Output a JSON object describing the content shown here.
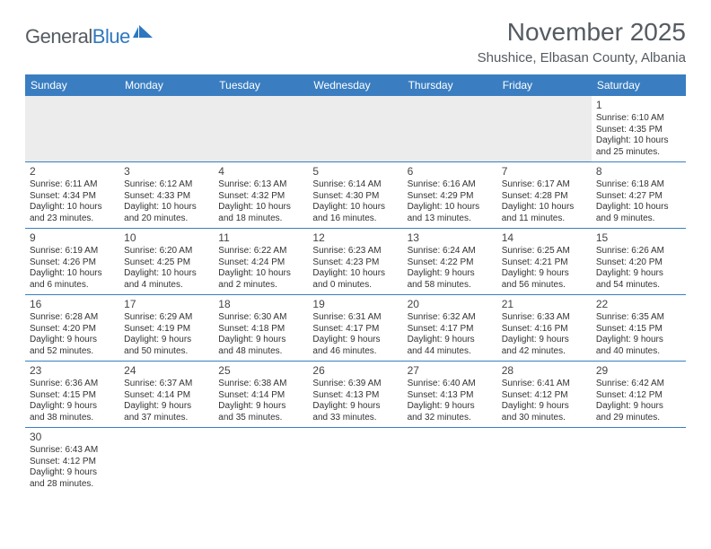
{
  "logo": {
    "part1": "General",
    "part2": "Blue"
  },
  "title": "November 2025",
  "location": "Shushice, Elbasan County, Albania",
  "colors": {
    "header_bg": "#3a7ec1",
    "header_text": "#ffffff",
    "border": "#3a7ec1",
    "blank_bg": "#ececec",
    "text": "#333333",
    "title_text": "#555b61",
    "logo_gray": "#555b61",
    "logo_blue": "#2f78c0"
  },
  "dayNames": [
    "Sunday",
    "Monday",
    "Tuesday",
    "Wednesday",
    "Thursday",
    "Friday",
    "Saturday"
  ],
  "weeks": [
    [
      {
        "blank": true
      },
      {
        "blank": true
      },
      {
        "blank": true
      },
      {
        "blank": true
      },
      {
        "blank": true
      },
      {
        "blank": true
      },
      {
        "day": "1",
        "sunrise": "Sunrise: 6:10 AM",
        "sunset": "Sunset: 4:35 PM",
        "daylight1": "Daylight: 10 hours",
        "daylight2": "and 25 minutes."
      }
    ],
    [
      {
        "day": "2",
        "sunrise": "Sunrise: 6:11 AM",
        "sunset": "Sunset: 4:34 PM",
        "daylight1": "Daylight: 10 hours",
        "daylight2": "and 23 minutes."
      },
      {
        "day": "3",
        "sunrise": "Sunrise: 6:12 AM",
        "sunset": "Sunset: 4:33 PM",
        "daylight1": "Daylight: 10 hours",
        "daylight2": "and 20 minutes."
      },
      {
        "day": "4",
        "sunrise": "Sunrise: 6:13 AM",
        "sunset": "Sunset: 4:32 PM",
        "daylight1": "Daylight: 10 hours",
        "daylight2": "and 18 minutes."
      },
      {
        "day": "5",
        "sunrise": "Sunrise: 6:14 AM",
        "sunset": "Sunset: 4:30 PM",
        "daylight1": "Daylight: 10 hours",
        "daylight2": "and 16 minutes."
      },
      {
        "day": "6",
        "sunrise": "Sunrise: 6:16 AM",
        "sunset": "Sunset: 4:29 PM",
        "daylight1": "Daylight: 10 hours",
        "daylight2": "and 13 minutes."
      },
      {
        "day": "7",
        "sunrise": "Sunrise: 6:17 AM",
        "sunset": "Sunset: 4:28 PM",
        "daylight1": "Daylight: 10 hours",
        "daylight2": "and 11 minutes."
      },
      {
        "day": "8",
        "sunrise": "Sunrise: 6:18 AM",
        "sunset": "Sunset: 4:27 PM",
        "daylight1": "Daylight: 10 hours",
        "daylight2": "and 9 minutes."
      }
    ],
    [
      {
        "day": "9",
        "sunrise": "Sunrise: 6:19 AM",
        "sunset": "Sunset: 4:26 PM",
        "daylight1": "Daylight: 10 hours",
        "daylight2": "and 6 minutes."
      },
      {
        "day": "10",
        "sunrise": "Sunrise: 6:20 AM",
        "sunset": "Sunset: 4:25 PM",
        "daylight1": "Daylight: 10 hours",
        "daylight2": "and 4 minutes."
      },
      {
        "day": "11",
        "sunrise": "Sunrise: 6:22 AM",
        "sunset": "Sunset: 4:24 PM",
        "daylight1": "Daylight: 10 hours",
        "daylight2": "and 2 minutes."
      },
      {
        "day": "12",
        "sunrise": "Sunrise: 6:23 AM",
        "sunset": "Sunset: 4:23 PM",
        "daylight1": "Daylight: 10 hours",
        "daylight2": "and 0 minutes."
      },
      {
        "day": "13",
        "sunrise": "Sunrise: 6:24 AM",
        "sunset": "Sunset: 4:22 PM",
        "daylight1": "Daylight: 9 hours",
        "daylight2": "and 58 minutes."
      },
      {
        "day": "14",
        "sunrise": "Sunrise: 6:25 AM",
        "sunset": "Sunset: 4:21 PM",
        "daylight1": "Daylight: 9 hours",
        "daylight2": "and 56 minutes."
      },
      {
        "day": "15",
        "sunrise": "Sunrise: 6:26 AM",
        "sunset": "Sunset: 4:20 PM",
        "daylight1": "Daylight: 9 hours",
        "daylight2": "and 54 minutes."
      }
    ],
    [
      {
        "day": "16",
        "sunrise": "Sunrise: 6:28 AM",
        "sunset": "Sunset: 4:20 PM",
        "daylight1": "Daylight: 9 hours",
        "daylight2": "and 52 minutes."
      },
      {
        "day": "17",
        "sunrise": "Sunrise: 6:29 AM",
        "sunset": "Sunset: 4:19 PM",
        "daylight1": "Daylight: 9 hours",
        "daylight2": "and 50 minutes."
      },
      {
        "day": "18",
        "sunrise": "Sunrise: 6:30 AM",
        "sunset": "Sunset: 4:18 PM",
        "daylight1": "Daylight: 9 hours",
        "daylight2": "and 48 minutes."
      },
      {
        "day": "19",
        "sunrise": "Sunrise: 6:31 AM",
        "sunset": "Sunset: 4:17 PM",
        "daylight1": "Daylight: 9 hours",
        "daylight2": "and 46 minutes."
      },
      {
        "day": "20",
        "sunrise": "Sunrise: 6:32 AM",
        "sunset": "Sunset: 4:17 PM",
        "daylight1": "Daylight: 9 hours",
        "daylight2": "and 44 minutes."
      },
      {
        "day": "21",
        "sunrise": "Sunrise: 6:33 AM",
        "sunset": "Sunset: 4:16 PM",
        "daylight1": "Daylight: 9 hours",
        "daylight2": "and 42 minutes."
      },
      {
        "day": "22",
        "sunrise": "Sunrise: 6:35 AM",
        "sunset": "Sunset: 4:15 PM",
        "daylight1": "Daylight: 9 hours",
        "daylight2": "and 40 minutes."
      }
    ],
    [
      {
        "day": "23",
        "sunrise": "Sunrise: 6:36 AM",
        "sunset": "Sunset: 4:15 PM",
        "daylight1": "Daylight: 9 hours",
        "daylight2": "and 38 minutes."
      },
      {
        "day": "24",
        "sunrise": "Sunrise: 6:37 AM",
        "sunset": "Sunset: 4:14 PM",
        "daylight1": "Daylight: 9 hours",
        "daylight2": "and 37 minutes."
      },
      {
        "day": "25",
        "sunrise": "Sunrise: 6:38 AM",
        "sunset": "Sunset: 4:14 PM",
        "daylight1": "Daylight: 9 hours",
        "daylight2": "and 35 minutes."
      },
      {
        "day": "26",
        "sunrise": "Sunrise: 6:39 AM",
        "sunset": "Sunset: 4:13 PM",
        "daylight1": "Daylight: 9 hours",
        "daylight2": "and 33 minutes."
      },
      {
        "day": "27",
        "sunrise": "Sunrise: 6:40 AM",
        "sunset": "Sunset: 4:13 PM",
        "daylight1": "Daylight: 9 hours",
        "daylight2": "and 32 minutes."
      },
      {
        "day": "28",
        "sunrise": "Sunrise: 6:41 AM",
        "sunset": "Sunset: 4:12 PM",
        "daylight1": "Daylight: 9 hours",
        "daylight2": "and 30 minutes."
      },
      {
        "day": "29",
        "sunrise": "Sunrise: 6:42 AM",
        "sunset": "Sunset: 4:12 PM",
        "daylight1": "Daylight: 9 hours",
        "daylight2": "and 29 minutes."
      }
    ],
    [
      {
        "day": "30",
        "sunrise": "Sunrise: 6:43 AM",
        "sunset": "Sunset: 4:12 PM",
        "daylight1": "Daylight: 9 hours",
        "daylight2": "and 28 minutes."
      },
      {
        "blank": true
      },
      {
        "blank": true
      },
      {
        "blank": true
      },
      {
        "blank": true
      },
      {
        "blank": true
      },
      {
        "blank": true
      }
    ]
  ]
}
